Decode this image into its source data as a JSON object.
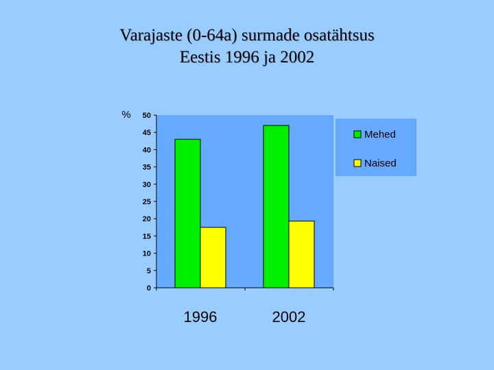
{
  "slide": {
    "title_line1": "Varajaste (0-64a) surmade osatähtsus",
    "title_line2": "Eestis 1996 ja 2002",
    "background_color": "#99ccff"
  },
  "chart_data": {
    "type": "bar",
    "categories": [
      "1996",
      "2002"
    ],
    "series": [
      {
        "name": "Mehed",
        "values": [
          43,
          47
        ],
        "color": "#00ee00"
      },
      {
        "name": "Naised",
        "values": [
          17.5,
          19.3
        ],
        "color": "#ffff00"
      }
    ],
    "ylabel": "%",
    "ylim": [
      0,
      50
    ],
    "yticks": [
      0,
      5,
      10,
      15,
      20,
      25,
      30,
      35,
      40,
      45,
      50
    ],
    "grid": false,
    "legend": "right",
    "plot_color": "#66aaff"
  }
}
